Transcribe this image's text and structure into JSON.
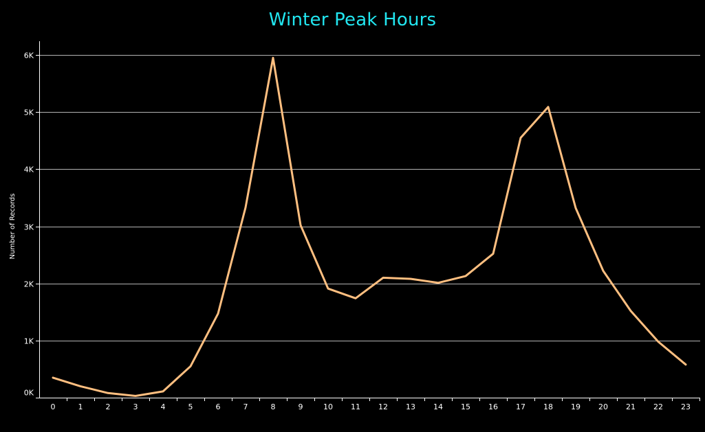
{
  "colors": {
    "background": "#000000",
    "title": "#22e6f0",
    "line": "#ffbf80",
    "grid": "#ffffff",
    "text": "#ffffff"
  },
  "chart_data": {
    "type": "line",
    "title": "Winter Peak Hours",
    "xlabel": "",
    "ylabel": "Number of Records",
    "x": [
      0,
      1,
      2,
      3,
      4,
      5,
      6,
      7,
      8,
      9,
      10,
      11,
      12,
      13,
      14,
      15,
      16,
      17,
      18,
      19,
      20,
      21,
      22,
      23
    ],
    "y_tick_labels": [
      "0K",
      "1K",
      "2K",
      "3K",
      "4K",
      "5K",
      "6K"
    ],
    "y_tick_values": [
      0,
      1000,
      2000,
      3000,
      4000,
      5000,
      6000
    ],
    "ylim": [
      0,
      6000
    ],
    "grid": true,
    "series": [
      {
        "values": [
          350,
          200,
          80,
          30,
          110,
          550,
          1470,
          3330,
          5950,
          3020,
          1910,
          1740,
          2100,
          2080,
          2010,
          2130,
          2520,
          4550,
          5090,
          3320,
          2220,
          1520,
          980,
          580
        ]
      }
    ]
  }
}
